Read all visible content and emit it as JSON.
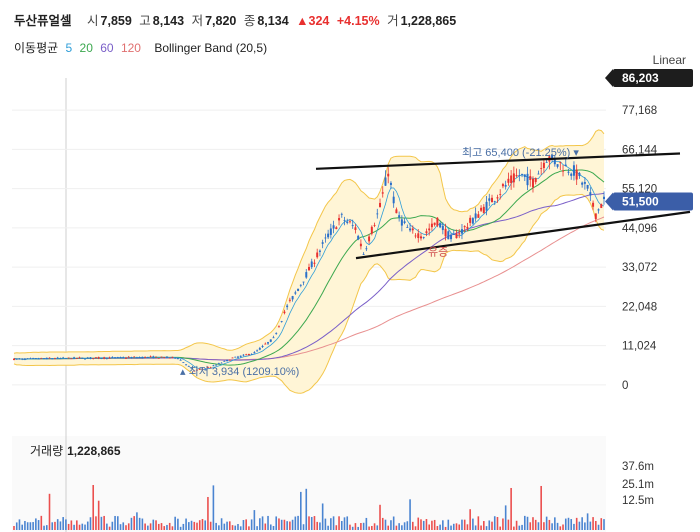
{
  "header": {
    "name": "두산퓨얼셀",
    "open_label": "시",
    "open": "7,859",
    "high_label": "고",
    "high": "8,143",
    "low_label": "저",
    "low": "7,820",
    "close_label": "종",
    "close": "8,134",
    "change": "▲324",
    "change_pct": "+4.15%",
    "volume_label": "거",
    "volume": "1,228,865"
  },
  "indicators": {
    "ma_label": "이동평균",
    "ma_periods": [
      {
        "label": "5",
        "color": "#2f9ed8"
      },
      {
        "label": "20",
        "color": "#3ca84f"
      },
      {
        "label": "60",
        "color": "#7a5fc8"
      },
      {
        "label": "120",
        "color": "#e07070"
      }
    ],
    "bollinger": "Bollinger Band (20,5)"
  },
  "scale_mode": "Linear",
  "chart_data": {
    "type": "candlestick",
    "y_ticks": [
      "77,168",
      "66,144",
      "55,120",
      "44,096",
      "33,072",
      "22,048",
      "11,024",
      "0"
    ],
    "y_tick_values": [
      77168,
      66144,
      55120,
      44096,
      33072,
      22048,
      11024,
      0
    ],
    "ylim": [
      -2000,
      86203
    ],
    "max_tag": "86,203",
    "max_value": 86203,
    "current_tag": "51,500",
    "current_value": 51500,
    "high_annotation": "최고 65,400 (-21.25%)",
    "high_value": 65400,
    "low_annotation": "최저 3,934 (1209.10%)",
    "low_value": 3934,
    "mid_annotation": "유증",
    "colors": {
      "up": "#e8302f",
      "down": "#2a6fc9",
      "band": "#fff5d6",
      "band_edge": "#f3c64a",
      "tag": "#3b5ea8"
    },
    "series_keyframes": [
      [
        0,
        7200
      ],
      [
        10,
        7400
      ],
      [
        20,
        7500
      ],
      [
        35,
        7600
      ],
      [
        50,
        7800
      ],
      [
        60,
        7600
      ],
      [
        66,
        4000
      ],
      [
        72,
        5000
      ],
      [
        80,
        7500
      ],
      [
        88,
        9000
      ],
      [
        95,
        13000
      ],
      [
        100,
        22000
      ],
      [
        104,
        27000
      ],
      [
        110,
        35000
      ],
      [
        115,
        42000
      ],
      [
        120,
        47000
      ],
      [
        125,
        44000
      ],
      [
        128,
        37000
      ],
      [
        134,
        50000
      ],
      [
        137,
        60000
      ],
      [
        140,
        48000
      ],
      [
        145,
        43000
      ],
      [
        150,
        42000
      ],
      [
        155,
        46000
      ],
      [
        160,
        41000
      ],
      [
        165,
        44000
      ],
      [
        170,
        48000
      ],
      [
        175,
        52000
      ],
      [
        180,
        56000
      ],
      [
        185,
        59000
      ],
      [
        190,
        57000
      ],
      [
        195,
        64000
      ],
      [
        200,
        62000
      ],
      [
        205,
        60000
      ],
      [
        210,
        55000
      ],
      [
        213,
        48000
      ],
      [
        216,
        52000
      ]
    ],
    "upper_trendline": [
      [
        0,
        60700
      ],
      [
        1,
        65000
      ]
    ],
    "lower_trendline": [
      [
        0,
        35600
      ],
      [
        1,
        48600
      ]
    ],
    "volume": {
      "label": "거래량",
      "value": "1,228,865",
      "y_ticks": [
        "37.6m",
        "25.1m",
        "12.5m"
      ]
    }
  }
}
